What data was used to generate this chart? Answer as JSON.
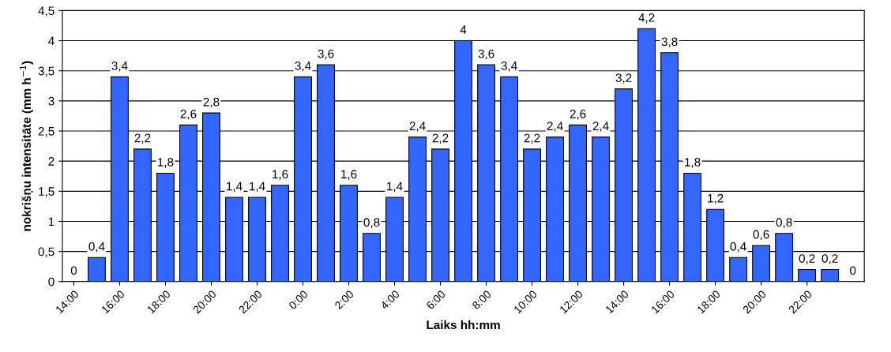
{
  "chart_data": {
    "type": "bar",
    "xlabel": "Laiks hh:mm",
    "ylabel": "nokrišņu intensitāte (mm h$^{−1}$)",
    "categories": [
      "14:00",
      null,
      "16:00",
      null,
      "18:00",
      null,
      "20:00",
      null,
      "22:00",
      null,
      "0:00",
      null,
      "2:00",
      null,
      "4:00",
      null,
      "6:00",
      null,
      "8:00",
      null,
      "10:00",
      null,
      "12:00",
      null,
      "14:00",
      null,
      "16:00",
      null,
      "18:00",
      null,
      "20:00",
      null,
      "22:00",
      null,
      null
    ],
    "values": [
      0,
      0.4,
      3.4,
      2.2,
      1.8,
      2.6,
      2.8,
      1.4,
      1.4,
      1.6,
      3.4,
      3.6,
      1.6,
      0.8,
      1.4,
      2.4,
      2.2,
      4,
      3.6,
      3.4,
      2.2,
      2.4,
      2.6,
      2.4,
      3.2,
      4.2,
      3.8,
      1.8,
      1.2,
      0.4,
      0.6,
      0.8,
      0.2,
      0.2,
      0
    ],
    "value_labels": [
      "0",
      "0,4",
      "3,4",
      "2,2",
      "1,8",
      "2,6",
      "2,8",
      "1,4",
      "1,4",
      "1,6",
      "3,4",
      "3,6",
      "1,6",
      "0,8",
      "1,4",
      "2,4",
      "2,2",
      "4",
      "3,6",
      "3,4",
      "2,2",
      "2,4",
      "2,6",
      "2,4",
      "3,2",
      "4,2",
      "3,8",
      "1,8",
      "1,2",
      "0,4",
      "0,6",
      "0,8",
      "0,2",
      "0,2",
      "0"
    ],
    "color": "#3366ff",
    "ylim": [
      0,
      4.5
    ],
    "yticks": [
      0,
      {
        "value": 0.5,
        "label": "0,5"
      },
      1,
      {
        "value": 1.5,
        "label": "1,5"
      },
      2,
      {
        "value": 2.5,
        "label": "2,5"
      },
      3,
      {
        "value": 3.5,
        "label": "3,5"
      },
      4,
      {
        "value": 4.5,
        "label": "4,5"
      }
    ],
    "grid": "y",
    "legend": false
  }
}
